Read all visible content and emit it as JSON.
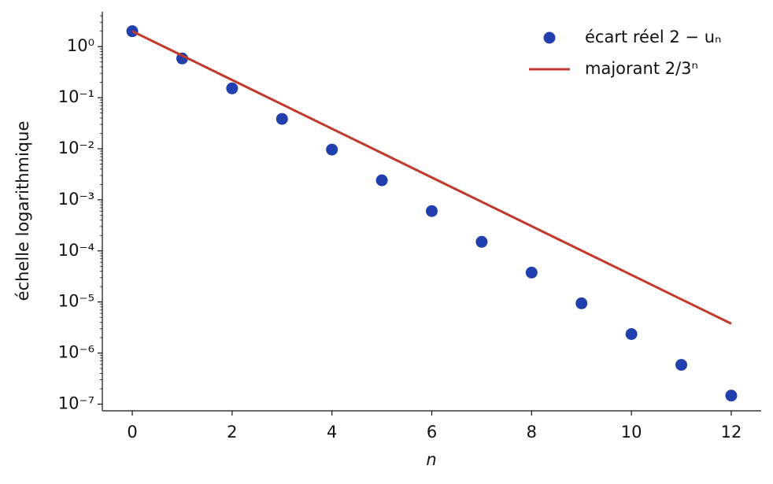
{
  "chart_data": {
    "type": "scatter",
    "xlabel": "n",
    "ylabel": "échelle logarithmique",
    "x": [
      0,
      1,
      2,
      3,
      4,
      5,
      6,
      7,
      8,
      9,
      10,
      11,
      12
    ],
    "series": [
      {
        "name": "écart réel 2 − uₙ",
        "type": "scatter",
        "color": "#2140ae",
        "values": [
          2,
          0.5858,
          0.1522,
          0.03843,
          0.00963,
          0.002409,
          0.0006024,
          0.0001506,
          3.765e-05,
          9.412e-06,
          2.353e-06,
          5.883e-07,
          1.471e-07
        ]
      },
      {
        "name": "majorant 2/3ⁿ",
        "type": "line",
        "color": "#c0392b",
        "values": [
          2,
          0.6667,
          0.2222,
          0.07407,
          0.02469,
          0.00823,
          0.002743,
          0.0009145,
          0.0003048,
          0.0001016,
          3.387e-05,
          1.129e-05,
          3.763e-06
        ]
      }
    ],
    "xlim": [
      -0.6,
      12.6
    ],
    "xticks": [
      0,
      2,
      4,
      6,
      8,
      10,
      12
    ],
    "ylim": [
      7.4e-08,
      4.8
    ],
    "log_y": true,
    "yticks": [
      {
        "value": 1,
        "label": "10⁰"
      },
      {
        "value": 0.1,
        "label": "10⁻¹"
      },
      {
        "value": 0.01,
        "label": "10⁻²"
      },
      {
        "value": 0.001,
        "label": "10⁻³"
      },
      {
        "value": 0.0001,
        "label": "10⁻⁴"
      },
      {
        "value": 1e-05,
        "label": "10⁻⁵"
      },
      {
        "value": 1e-06,
        "label": "10⁻⁶"
      },
      {
        "value": 1e-07,
        "label": "10⁻⁷"
      }
    ],
    "legend": "upper right"
  }
}
